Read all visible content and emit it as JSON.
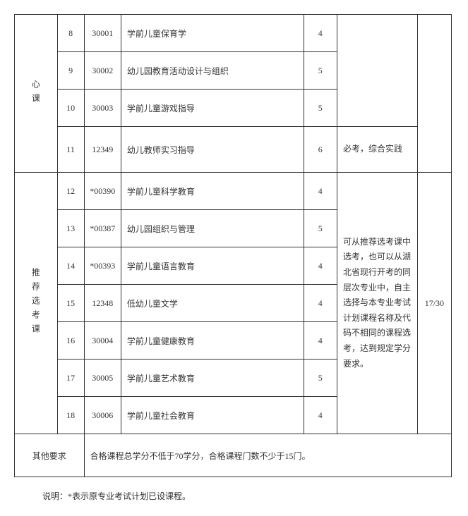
{
  "categories": {
    "core": "心课",
    "elective": "推荐选考课"
  },
  "coreRows": [
    {
      "num": "8",
      "code": "30001",
      "name": "学前儿童保育学",
      "credit": "4",
      "note": ""
    },
    {
      "num": "9",
      "code": "30002",
      "name": "幼儿园教育活动设计与组织",
      "credit": "5",
      "note": ""
    },
    {
      "num": "10",
      "code": "30003",
      "name": "学前儿童游戏指导",
      "credit": "5",
      "note": ""
    },
    {
      "num": "11",
      "code": "12349",
      "name": "幼儿教师实习指导",
      "credit": "6",
      "note": "必考，综合实践"
    }
  ],
  "coreNoteSpan": "",
  "electiveRows": [
    {
      "num": "12",
      "code": "*00390",
      "name": "学前儿童科学教育",
      "credit": "4"
    },
    {
      "num": "13",
      "code": "*00387",
      "name": "幼儿园组织与管理",
      "credit": "5"
    },
    {
      "num": "14",
      "code": "*00393",
      "name": "学前儿童语言教育",
      "credit": "4"
    },
    {
      "num": "15",
      "code": "12348",
      "name": "低幼儿童文学",
      "credit": "4"
    },
    {
      "num": "16",
      "code": "30004",
      "name": "学前儿童健康教育",
      "credit": "4"
    },
    {
      "num": "17",
      "code": "30005",
      "name": "学前儿童艺术教育",
      "credit": "5"
    },
    {
      "num": "18",
      "code": "30006",
      "name": "学前儿童社会教育",
      "credit": "4"
    }
  ],
  "electiveNote": "可从推荐选考课中选考，也可以从湖北省现行开考的同层次专业中，自主选择与本专业考试计划课程名称及代码不相同的课程选考，达到规定学分要求。",
  "electiveTotal": "17/30",
  "otherReqLabel": "其他要求",
  "otherReqText": "合格课程总学分不低于70学分，合格课程门数不少于15门。",
  "footnote": "说明：*表示原专业考试计划已设课程。"
}
